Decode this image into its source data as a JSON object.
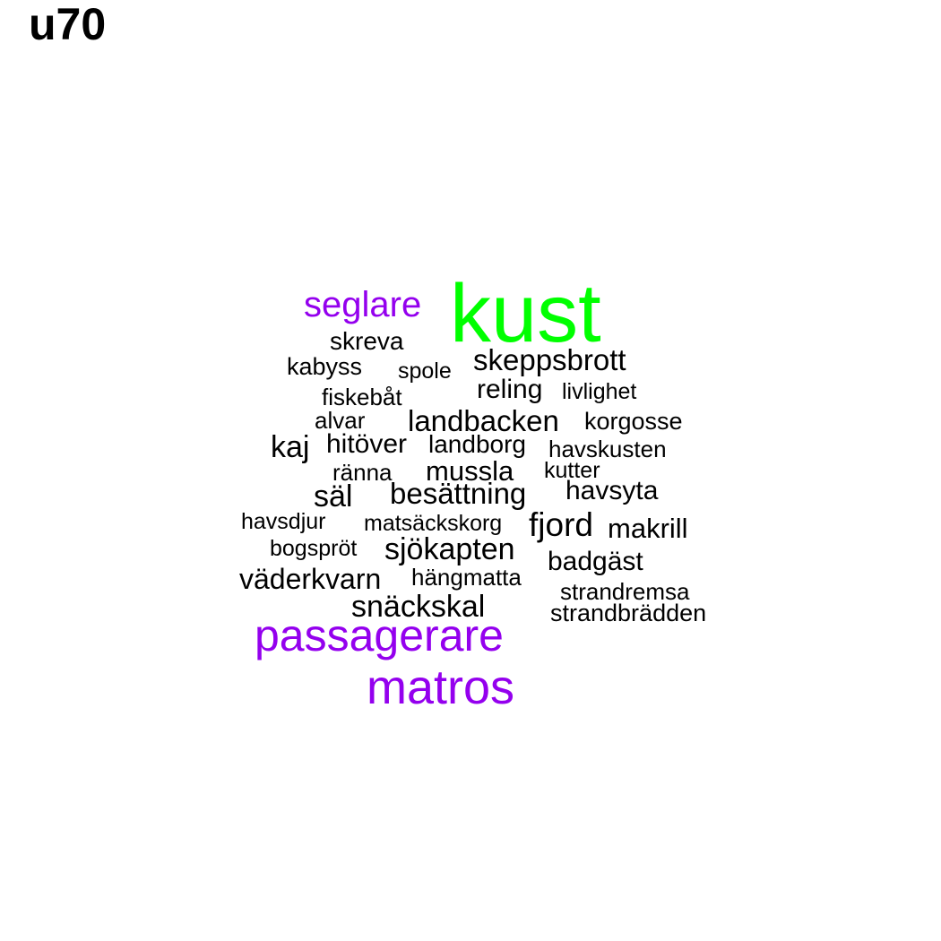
{
  "title": "u70",
  "colors": {
    "highlight": "#00ff00",
    "accent": "#9400ee",
    "default": "#000000"
  },
  "words": [
    {
      "text": "kust",
      "color": "highlight"
    },
    {
      "text": "seglare",
      "color": "accent"
    },
    {
      "text": "passagerare",
      "color": "accent"
    },
    {
      "text": "matros",
      "color": "accent"
    },
    {
      "text": "skreva",
      "color": "default"
    },
    {
      "text": "kabyss",
      "color": "default"
    },
    {
      "text": "spole",
      "color": "default"
    },
    {
      "text": "skeppsbrott",
      "color": "default"
    },
    {
      "text": "fiskebåt",
      "color": "default"
    },
    {
      "text": "reling",
      "color": "default"
    },
    {
      "text": "livlighet",
      "color": "default"
    },
    {
      "text": "alvar",
      "color": "default"
    },
    {
      "text": "landbacken",
      "color": "default"
    },
    {
      "text": "korgosse",
      "color": "default"
    },
    {
      "text": "kaj",
      "color": "default"
    },
    {
      "text": "hitöver",
      "color": "default"
    },
    {
      "text": "landborg",
      "color": "default"
    },
    {
      "text": "havskusten",
      "color": "default"
    },
    {
      "text": "ränna",
      "color": "default"
    },
    {
      "text": "mussla",
      "color": "default"
    },
    {
      "text": "kutter",
      "color": "default"
    },
    {
      "text": "säl",
      "color": "default"
    },
    {
      "text": "besättning",
      "color": "default"
    },
    {
      "text": "havsyta",
      "color": "default"
    },
    {
      "text": "havsdjur",
      "color": "default"
    },
    {
      "text": "matsäckskorg",
      "color": "default"
    },
    {
      "text": "fjord",
      "color": "default"
    },
    {
      "text": "makrill",
      "color": "default"
    },
    {
      "text": "bogspröt",
      "color": "default"
    },
    {
      "text": "sjökapten",
      "color": "default"
    },
    {
      "text": "badgäst",
      "color": "default"
    },
    {
      "text": "väderkvarn",
      "color": "default"
    },
    {
      "text": "hängmatta",
      "color": "default"
    },
    {
      "text": "strandremsa",
      "color": "default"
    },
    {
      "text": "snäckskal",
      "color": "default"
    },
    {
      "text": "strandbrädden",
      "color": "default"
    }
  ]
}
